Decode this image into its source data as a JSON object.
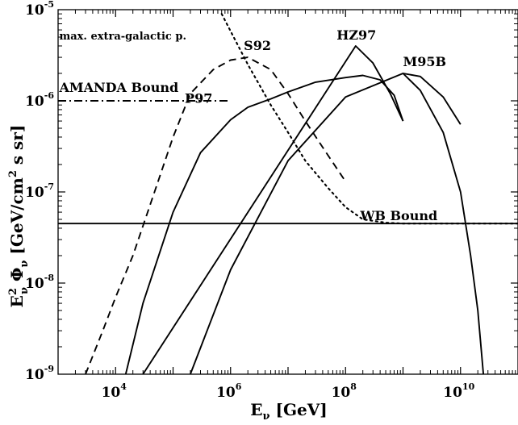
{
  "chart_data": {
    "type": "line",
    "x_scale": "log",
    "y_scale": "log",
    "xlim": [
      1000,
      100000000000.0
    ],
    "ylim": [
      1e-09,
      1e-05
    ],
    "grid": false,
    "legend": "none",
    "xlabel": {
      "main": "E",
      "sub": "ν",
      "unit": " [GeV]"
    },
    "ylabel": {
      "p1": "E",
      "p1_sup": "2",
      "p1_sub": "ν",
      "p2": " Φ",
      "p2_sub": "ν",
      "p3": "  [GeV/cm",
      "p3_sup": "2",
      "p3_rest": " s sr]"
    },
    "x_ticks": [
      {
        "value": 10000,
        "base": "10",
        "exp": "4"
      },
      {
        "value": 1000000,
        "base": "10",
        "exp": "6"
      },
      {
        "value": 100000000,
        "base": "10",
        "exp": "8"
      },
      {
        "value": 10000000000,
        "base": "10",
        "exp": "10"
      }
    ],
    "y_ticks": [
      {
        "value": 1e-09,
        "base": "10",
        "exp": "-9"
      },
      {
        "value": 1e-08,
        "base": "10",
        "exp": "-8"
      },
      {
        "value": 1e-07,
        "base": "10",
        "exp": "-7"
      },
      {
        "value": 1e-06,
        "base": "10",
        "exp": "-6"
      },
      {
        "value": 1e-05,
        "base": "10",
        "exp": "-5"
      }
    ],
    "series": [
      {
        "name": "S92",
        "style": "dashed",
        "points": [
          [
            3000,
            1e-09
          ],
          [
            6000,
            3e-09
          ],
          [
            10000,
            7e-09
          ],
          [
            20000,
            2e-08
          ],
          [
            50000,
            1.1e-07
          ],
          [
            100000,
            4e-07
          ],
          [
            200000,
            1.2e-06
          ],
          [
            500000,
            2.2e-06
          ],
          [
            1000000,
            2.8e-06
          ],
          [
            2000000,
            3e-06
          ],
          [
            5000000,
            2.2e-06
          ],
          [
            10000000,
            1.2e-06
          ],
          [
            20000000,
            6e-07
          ],
          [
            50000000,
            2.5e-07
          ],
          [
            100000000,
            1.3e-07
          ]
        ]
      },
      {
        "name": "P97",
        "style": "solid",
        "points": [
          [
            15000,
            1e-09
          ],
          [
            30000,
            6e-09
          ],
          [
            100000,
            6e-08
          ],
          [
            300000,
            2.7e-07
          ],
          [
            1000000,
            6.2e-07
          ],
          [
            2000000,
            8.5e-07
          ],
          [
            5000000,
            1.05e-06
          ],
          [
            10000000,
            1.25e-06
          ],
          [
            30000000,
            1.6e-06
          ],
          [
            100000000,
            1.8e-06
          ],
          [
            200000000,
            1.9e-06
          ],
          [
            400000000,
            1.7e-06
          ],
          [
            700000000,
            1.15e-06
          ],
          [
            1000000000,
            6e-07
          ]
        ]
      },
      {
        "name": "HZ97",
        "style": "solid",
        "points": [
          [
            30000,
            1e-09
          ],
          [
            150000000,
            4e-06
          ],
          [
            300000000,
            2.6e-06
          ],
          [
            600000000,
            1.2e-06
          ],
          [
            1000000000,
            6e-07
          ]
        ]
      },
      {
        "name": "M95B",
        "style": "solid",
        "points": [
          [
            200000,
            1e-09
          ],
          [
            1000000,
            1.4e-08
          ],
          [
            10000000,
            2.2e-07
          ],
          [
            100000000,
            1.1e-06
          ],
          [
            1000000000,
            2e-06
          ],
          [
            2000000000,
            1.85e-06
          ],
          [
            5000000000,
            1.1e-06
          ],
          [
            10000000000,
            5.5e-07
          ]
        ]
      },
      {
        "name": "max. extra-galactic p.",
        "style": "dotted",
        "points": [
          [
            700000,
            9e-06
          ],
          [
            2000000,
            2.5e-06
          ],
          [
            5000000,
            9e-07
          ],
          [
            10000000,
            4.5e-07
          ],
          [
            20000000,
            2.2e-07
          ],
          [
            50000000,
            1.1e-07
          ],
          [
            100000000,
            6.8e-08
          ],
          [
            200000000,
            5e-08
          ],
          [
            500000000,
            4.6e-08
          ],
          [
            1000000000,
            4.5e-08
          ],
          [
            3000000000,
            4.5e-08
          ],
          [
            10000000000,
            4.5e-08
          ],
          [
            100000000000,
            4.5e-08
          ]
        ]
      },
      {
        "name": "AMANDA Bound",
        "style": "dashdot",
        "points": [
          [
            1000,
            1e-06
          ],
          [
            1000000,
            1e-06
          ]
        ]
      },
      {
        "name": "WB Bound",
        "style": "solid",
        "points": [
          [
            1000,
            4.5e-08
          ],
          [
            100000000000,
            4.5e-08
          ]
        ]
      },
      {
        "name": "",
        "style": "solid",
        "points": [
          [
            1000000000,
            2e-06
          ],
          [
            2000000000,
            1.3e-06
          ],
          [
            5000000000,
            4.5e-07
          ],
          [
            10000000000,
            1e-07
          ],
          [
            15000000000,
            2e-08
          ],
          [
            20000000000,
            5e-09
          ],
          [
            25000000000,
            1e-09
          ]
        ]
      }
    ],
    "annotations": [
      {
        "text": "S92",
        "x": 1700000,
        "y": 3.6e-06,
        "size": "large"
      },
      {
        "text": "HZ97",
        "x": 70000000,
        "y": 4.7e-06,
        "size": "large"
      },
      {
        "text": "M95B",
        "x": 1000000000,
        "y": 2.4e-06,
        "size": "large"
      },
      {
        "text": "P97",
        "x": 160000,
        "y": 9.5e-07,
        "size": "large"
      },
      {
        "text": "AMANDA Bound",
        "x": 1050,
        "y": 1.25e-06,
        "size": "large"
      },
      {
        "text": "max. extra-galactic p.",
        "x": 1050,
        "y": 4.7e-06,
        "size": "small"
      },
      {
        "text": "WB Bound",
        "x": 180000000,
        "y": 4.9e-08,
        "size": "large"
      }
    ]
  }
}
